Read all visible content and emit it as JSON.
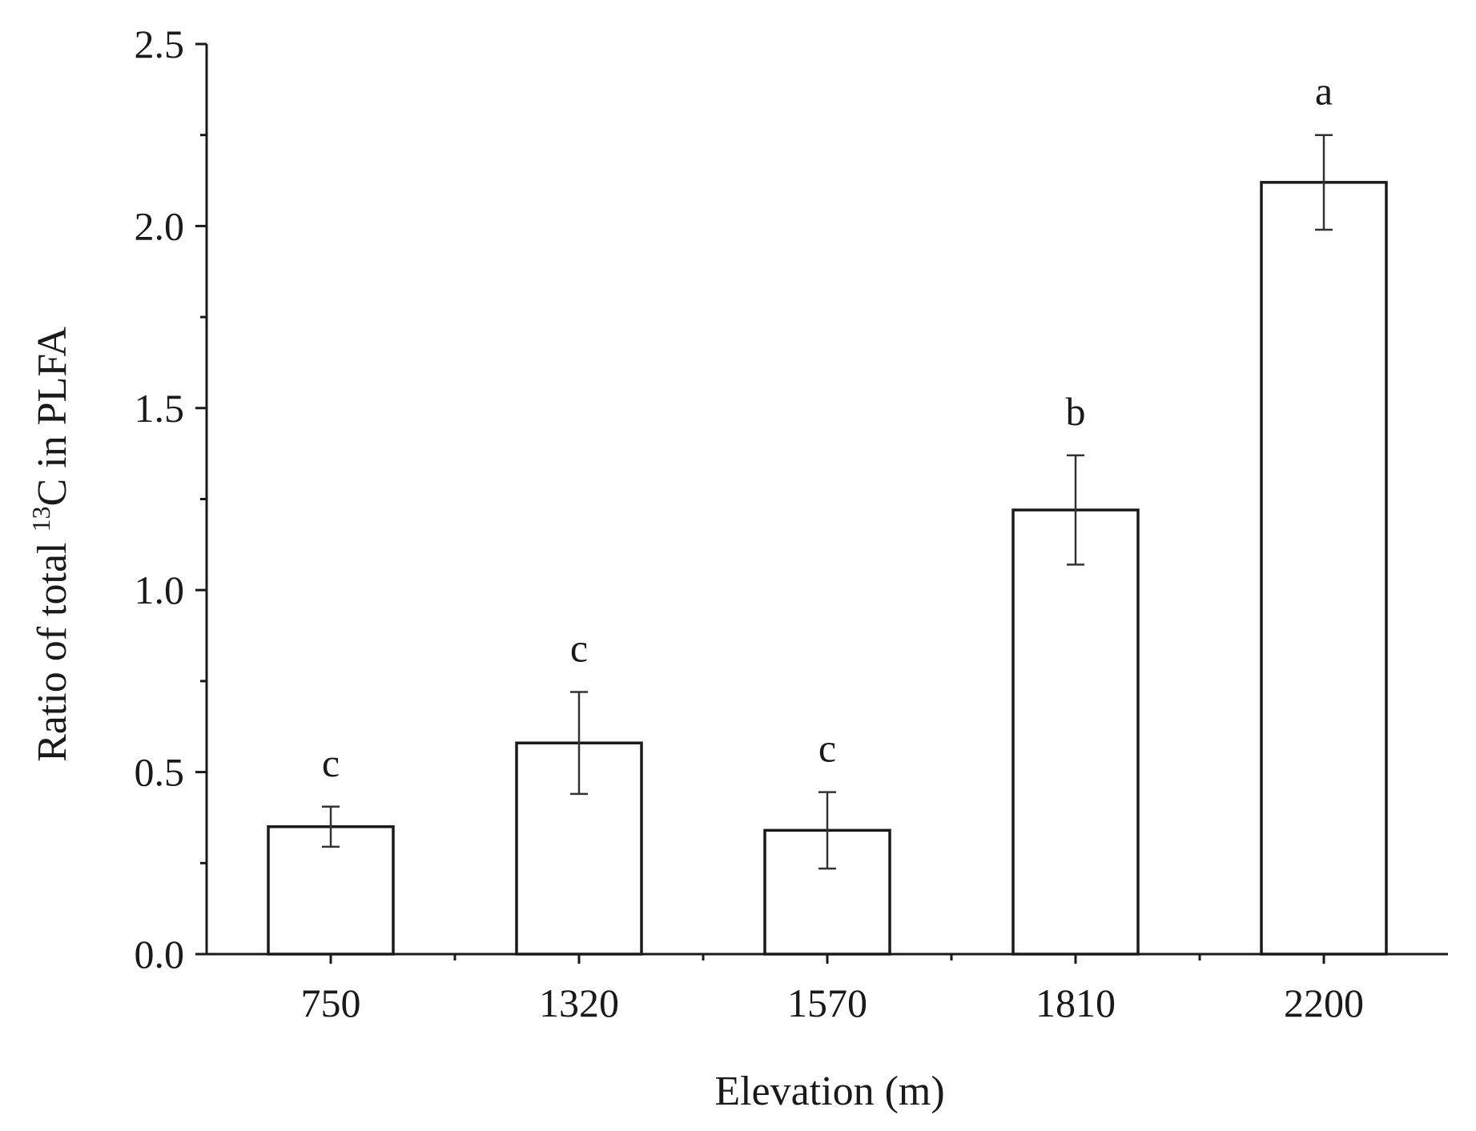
{
  "chart_data": {
    "type": "bar",
    "xlabel": "Elevation (m)",
    "ylabel": {
      "prefix": "Ratio of total ",
      "superscript": "13",
      "suffix": "C in PLFA"
    },
    "categories": [
      "750",
      "1320",
      "1570",
      "1810",
      "2200"
    ],
    "values": [
      0.35,
      0.58,
      0.34,
      1.22,
      2.12
    ],
    "errors": [
      0.055,
      0.14,
      0.105,
      0.15,
      0.13
    ],
    "significance": [
      "c",
      "c",
      "c",
      "b",
      "a"
    ],
    "ylim": [
      0,
      2.5
    ],
    "yticks": [
      "0.0",
      "0.5",
      "1.0",
      "1.5",
      "2.0",
      "2.5"
    ],
    "ytick_values": [
      0,
      0.5,
      1.0,
      1.5,
      2.0,
      2.5
    ],
    "grid": false,
    "bar_fill": "#ffffff",
    "bar_stroke": "#1a1a1a"
  }
}
